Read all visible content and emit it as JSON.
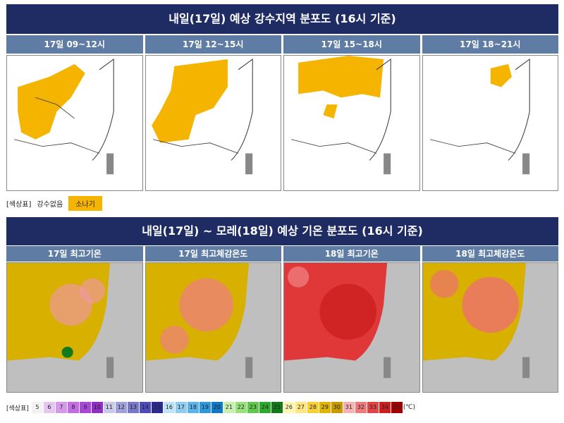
{
  "top": {
    "title": "내일(17일) 예상 강수지역 분포도 (16시 기준)",
    "panels": [
      "17일 09~12시",
      "17일 12~15시",
      "17일 15~18시",
      "17일 18~21시"
    ],
    "legend_label": "[색상표]",
    "legend_items": [
      "강수없음",
      "소나기"
    ],
    "shower_color": "#f5b400"
  },
  "bottom": {
    "title": "내일(17일) ~ 모레(18일) 예상 기온 분포도 (16시 기준)",
    "panels": [
      "17일 최고기온",
      "17일 최고체감온도",
      "18일 최고기온",
      "18일 최고체감온도"
    ],
    "legend_label": "[색상표]",
    "legend_unit": "(℃)",
    "scale": [
      {
        "v": "5",
        "c": "#f2f2f2"
      },
      {
        "v": "6",
        "c": "#e5c6f0"
      },
      {
        "v": "7",
        "c": "#d49ae8"
      },
      {
        "v": "8",
        "c": "#c16ee0"
      },
      {
        "v": "9",
        "c": "#a848d6"
      },
      {
        "v": "10",
        "c": "#8f2fc4"
      },
      {
        "v": "11",
        "c": "#c9c9e8"
      },
      {
        "v": "12",
        "c": "#a0a0d8"
      },
      {
        "v": "13",
        "c": "#7878c8"
      },
      {
        "v": "14",
        "c": "#4d4db5"
      },
      {
        "v": "15",
        "c": "#2a2a90"
      },
      {
        "v": "16",
        "c": "#bfe3f7"
      },
      {
        "v": "17",
        "c": "#8fcdf0"
      },
      {
        "v": "18",
        "c": "#5bb4e8"
      },
      {
        "v": "19",
        "c": "#2d99dc"
      },
      {
        "v": "20",
        "c": "#1178c4"
      },
      {
        "v": "21",
        "c": "#c8f0b0"
      },
      {
        "v": "22",
        "c": "#98e07a"
      },
      {
        "v": "23",
        "c": "#5fc84a"
      },
      {
        "v": "24",
        "c": "#2fa82e"
      },
      {
        "v": "25",
        "c": "#127a18"
      },
      {
        "v": "26",
        "c": "#fff6b3"
      },
      {
        "v": "27",
        "c": "#ffe680"
      },
      {
        "v": "28",
        "c": "#f6cf3a"
      },
      {
        "v": "29",
        "c": "#e0b400"
      },
      {
        "v": "30",
        "c": "#c89a00"
      },
      {
        "v": "31",
        "c": "#f6b2b2"
      },
      {
        "v": "32",
        "c": "#ee7a7a"
      },
      {
        "v": "33",
        "c": "#e04444"
      },
      {
        "v": "34",
        "c": "#cc1e1e"
      },
      {
        "v": "35",
        "c": "#a00000"
      }
    ]
  }
}
